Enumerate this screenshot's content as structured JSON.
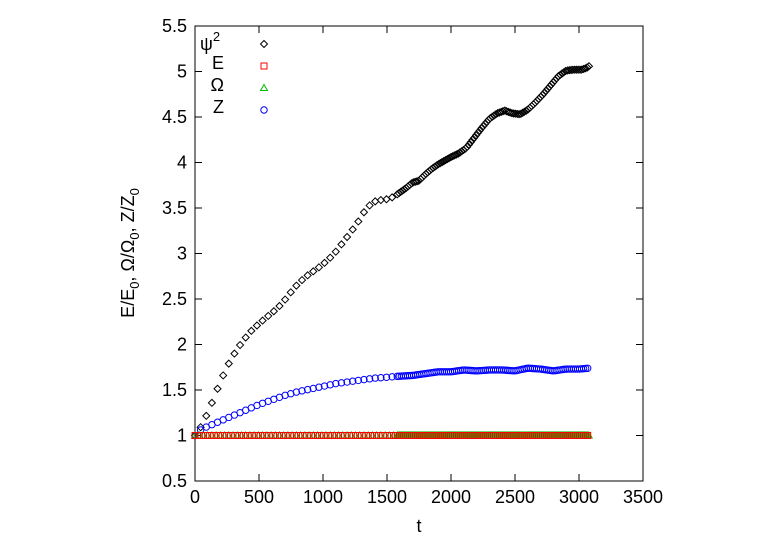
{
  "chart_data": {
    "type": "scatter",
    "title": "",
    "xlabel": "t",
    "ylabel": "E/E0, Ω/Ω0, Z/Z0",
    "ylabel_parts": {
      "p1": "E/E",
      "s1": "0",
      "p2": ", Ω/Ω",
      "s2": "0",
      "p3": ", Z/Z",
      "s3": "0"
    },
    "xlim": [
      0,
      3500
    ],
    "ylim": [
      0.5,
      5.5
    ],
    "x_ticks": [
      0,
      500,
      1000,
      1500,
      2000,
      2500,
      3000,
      3500
    ],
    "x_tick_labels": [
      "0",
      "500",
      "1000",
      "1500",
      "2000",
      "2500",
      "3000",
      "3500"
    ],
    "y_ticks": [
      0.5,
      1,
      1.5,
      2,
      2.5,
      3,
      3.5,
      4,
      4.5,
      5,
      5.5
    ],
    "y_tick_labels": [
      "0.5",
      "1",
      "1.5",
      "2",
      "2.5",
      "3",
      "3.5",
      "4",
      "4.5",
      "5",
      "5.5"
    ],
    "grid": false,
    "legend_position": "top-left",
    "series": [
      {
        "name": "ψ2",
        "name_base": "ψ",
        "name_sup": "2",
        "marker": "diamond",
        "color": "#000000",
        "curve": [
          [
            0,
            1.0
          ],
          [
            40,
            1.08
          ],
          [
            100,
            1.25
          ],
          [
            150,
            1.42
          ],
          [
            200,
            1.6
          ],
          [
            260,
            1.78
          ],
          [
            320,
            1.93
          ],
          [
            380,
            2.05
          ],
          [
            440,
            2.15
          ],
          [
            500,
            2.23
          ],
          [
            560,
            2.3
          ],
          [
            620,
            2.37
          ],
          [
            680,
            2.45
          ],
          [
            740,
            2.56
          ],
          [
            800,
            2.66
          ],
          [
            860,
            2.74
          ],
          [
            920,
            2.8
          ],
          [
            980,
            2.86
          ],
          [
            1040,
            2.93
          ],
          [
            1100,
            3.02
          ],
          [
            1160,
            3.13
          ],
          [
            1220,
            3.24
          ],
          [
            1280,
            3.36
          ],
          [
            1340,
            3.5
          ],
          [
            1400,
            3.57
          ],
          [
            1460,
            3.59
          ],
          [
            1520,
            3.6
          ],
          [
            1580,
            3.65
          ],
          [
            1650,
            3.72
          ],
          [
            1700,
            3.78
          ],
          [
            1750,
            3.8
          ],
          [
            1800,
            3.87
          ],
          [
            1850,
            3.93
          ],
          [
            1900,
            3.98
          ],
          [
            1950,
            4.02
          ],
          [
            2000,
            4.06
          ],
          [
            2060,
            4.1
          ],
          [
            2120,
            4.16
          ],
          [
            2180,
            4.27
          ],
          [
            2240,
            4.38
          ],
          [
            2300,
            4.48
          ],
          [
            2360,
            4.54
          ],
          [
            2420,
            4.57
          ],
          [
            2480,
            4.54
          ],
          [
            2540,
            4.53
          ],
          [
            2600,
            4.58
          ],
          [
            2660,
            4.66
          ],
          [
            2720,
            4.75
          ],
          [
            2780,
            4.85
          ],
          [
            2840,
            4.95
          ],
          [
            2900,
            5.01
          ],
          [
            2960,
            5.02
          ],
          [
            3020,
            5.02
          ],
          [
            3060,
            5.04
          ],
          [
            3080,
            5.06
          ]
        ]
      },
      {
        "name": "E",
        "marker": "square",
        "color": "#ff0000",
        "curve": [
          [
            0,
            1.0
          ],
          [
            3080,
            1.0
          ]
        ]
      },
      {
        "name": "Ω",
        "marker": "triangle",
        "color": "#00c000",
        "curve": [
          [
            0,
            1.0
          ],
          [
            3080,
            1.0
          ]
        ]
      },
      {
        "name": "Z",
        "marker": "circle",
        "color": "#0000ff",
        "curve": [
          [
            0,
            1.0
          ],
          [
            50,
            1.07
          ],
          [
            100,
            1.1
          ],
          [
            200,
            1.16
          ],
          [
            300,
            1.22
          ],
          [
            400,
            1.28
          ],
          [
            500,
            1.34
          ],
          [
            600,
            1.39
          ],
          [
            700,
            1.44
          ],
          [
            800,
            1.48
          ],
          [
            900,
            1.51
          ],
          [
            1000,
            1.54
          ],
          [
            1100,
            1.57
          ],
          [
            1200,
            1.59
          ],
          [
            1300,
            1.61
          ],
          [
            1400,
            1.63
          ],
          [
            1500,
            1.64
          ],
          [
            1580,
            1.65
          ],
          [
            1700,
            1.66
          ],
          [
            1800,
            1.68
          ],
          [
            1900,
            1.7
          ],
          [
            2000,
            1.7
          ],
          [
            2100,
            1.72
          ],
          [
            2200,
            1.71
          ],
          [
            2300,
            1.72
          ],
          [
            2400,
            1.72
          ],
          [
            2500,
            1.71
          ],
          [
            2600,
            1.74
          ],
          [
            2700,
            1.73
          ],
          [
            2800,
            1.71
          ],
          [
            2900,
            1.73
          ],
          [
            3000,
            1.73
          ],
          [
            3080,
            1.74
          ]
        ]
      }
    ]
  }
}
